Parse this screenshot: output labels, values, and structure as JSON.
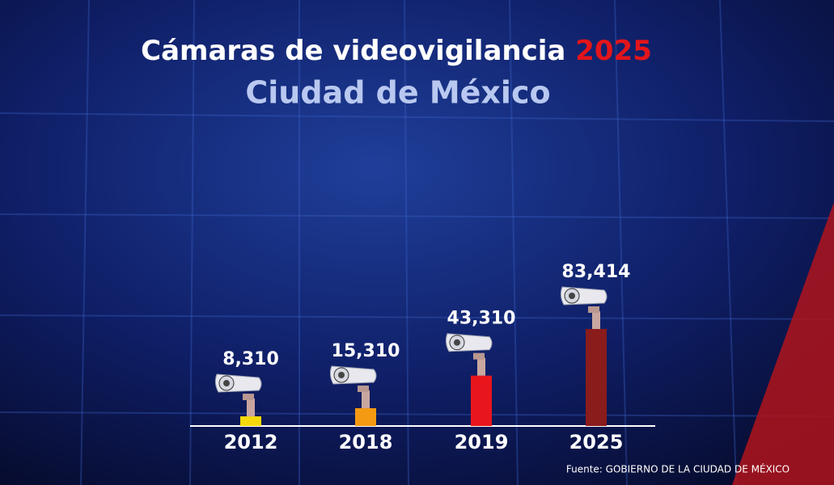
{
  "chart_data": {
    "type": "bar",
    "title": "Cámaras de videovigilancia",
    "title_highlight": "2025",
    "subtitle": "Ciudad de México",
    "categories": [
      "2012",
      "2018",
      "2019",
      "2025"
    ],
    "values": [
      8310,
      15310,
      43310,
      83414
    ],
    "value_labels": [
      "8,310",
      "15,310",
      "43,310",
      "83,414"
    ],
    "colors": [
      "#f5d90a",
      "#f39a12",
      "#e8161c",
      "#8a1c1c"
    ],
    "source": "Fuente: GOBIERNO DE LA CIUDAD DE MÉXICO"
  }
}
